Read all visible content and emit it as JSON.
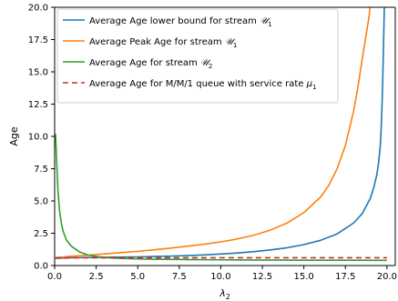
{
  "chart_data": {
    "type": "line",
    "xlabel": "λ",
    "xlabel_sub": "2",
    "ylabel": "Age",
    "xlim": [
      0,
      20.5
    ],
    "ylim": [
      0,
      20
    ],
    "xticks": [
      0.0,
      2.5,
      5.0,
      7.5,
      10.0,
      12.5,
      15.0,
      17.5,
      20.0
    ],
    "xtick_labels": [
      "0.0",
      "2.5",
      "5.0",
      "7.5",
      "10.0",
      "12.5",
      "15.0",
      "17.5",
      "20.0"
    ],
    "yticks": [
      0.0,
      2.5,
      5.0,
      7.5,
      10.0,
      12.5,
      15.0,
      17.5,
      20.0
    ],
    "ytick_labels": [
      "0.0",
      "2.5",
      "5.0",
      "7.5",
      "10.0",
      "12.5",
      "15.0",
      "17.5",
      "20.0"
    ],
    "grid": false,
    "legend_position": "top-left",
    "series": [
      {
        "name": "Average Age lower bound for stream",
        "name_symbol": "𝒰",
        "name_sub": "1",
        "color": "#1f77b4",
        "dash": "solid",
        "x": [
          0.05,
          1,
          2,
          3,
          4,
          5,
          6,
          7,
          8,
          9,
          10,
          11,
          12,
          13,
          14,
          15,
          16,
          17,
          18,
          18.5,
          19,
          19.2,
          19.4,
          19.5,
          19.6,
          19.65,
          19.7,
          19.75,
          19.8,
          19.85
        ],
        "y": [
          0.56,
          0.6,
          0.62,
          0.64,
          0.66,
          0.67,
          0.7,
          0.73,
          0.77,
          0.82,
          0.89,
          0.97,
          1.08,
          1.21,
          1.38,
          1.62,
          1.95,
          2.45,
          3.3,
          4.0,
          5.2,
          6.0,
          7.1,
          8.0,
          9.3,
          10.5,
          12.3,
          14.6,
          17.5,
          20.5
        ]
      },
      {
        "name": "Average Peak Age for stream",
        "name_symbol": "𝒰",
        "name_sub": "1",
        "color": "#ff7f0e",
        "dash": "solid",
        "x": [
          0.05,
          1,
          2,
          3,
          4,
          5,
          6,
          7,
          8,
          9,
          10,
          11,
          12,
          13,
          14,
          15,
          16,
          16.5,
          17,
          17.5,
          18,
          18.25,
          18.5,
          18.7,
          18.8,
          18.9,
          18.95,
          19.0,
          19.05
        ],
        "y": [
          0.6,
          0.72,
          0.8,
          0.9,
          1.0,
          1.1,
          1.22,
          1.35,
          1.5,
          1.65,
          1.83,
          2.06,
          2.35,
          2.75,
          3.3,
          4.1,
          5.3,
          6.2,
          7.5,
          9.3,
          12.0,
          13.8,
          15.9,
          17.5,
          18.3,
          19.1,
          19.6,
          20.2,
          20.8
        ]
      },
      {
        "name": "Average Age for stream",
        "name_symbol": "𝒰",
        "name_sub": "2",
        "color": "#2ca02c",
        "dash": "solid",
        "x": [
          0.05,
          0.1,
          0.15,
          0.2,
          0.3,
          0.4,
          0.5,
          0.7,
          1.0,
          1.5,
          2.0,
          2.5,
          3,
          4,
          5,
          6,
          8,
          10,
          12,
          14,
          16,
          18,
          20
        ],
        "y": [
          10.2,
          8.8,
          7.2,
          5.8,
          4.2,
          3.3,
          2.7,
          2.0,
          1.5,
          1.05,
          0.82,
          0.7,
          0.62,
          0.55,
          0.51,
          0.49,
          0.46,
          0.44,
          0.43,
          0.42,
          0.41,
          0.41,
          0.4
        ]
      },
      {
        "name": "Average Age for M/M/1 queue with service rate",
        "name_symbol": "μ",
        "name_sub": "1",
        "color": "#d62728",
        "dash": "dashed",
        "x": [
          0.05,
          20.0
        ],
        "y": [
          0.6,
          0.6
        ]
      }
    ]
  }
}
